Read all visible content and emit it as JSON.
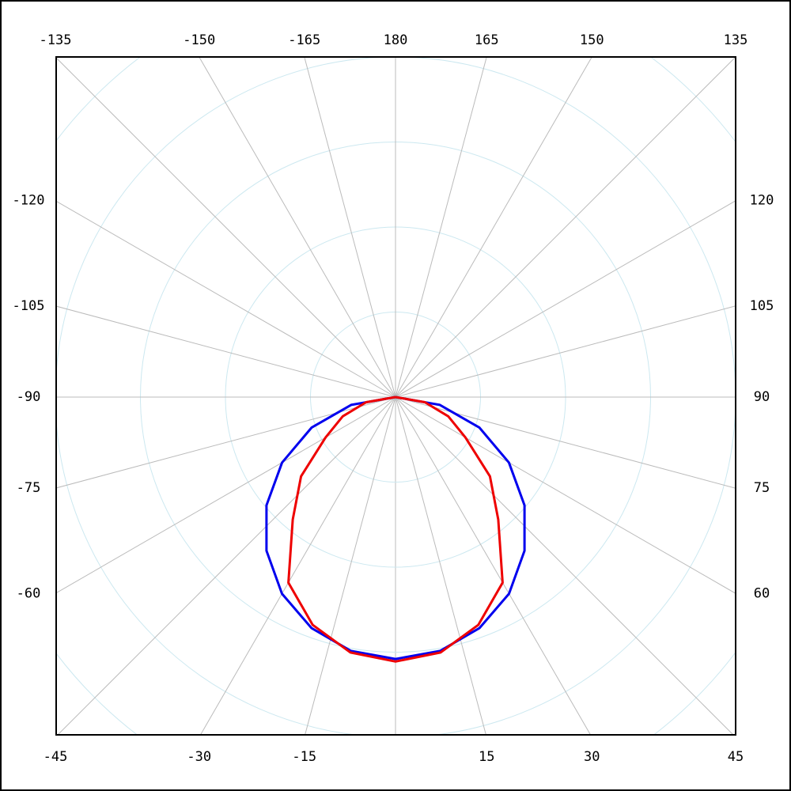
{
  "chart_data": {
    "type": "polar",
    "theta": [
      -90,
      -80,
      -70,
      -60,
      -50,
      -40,
      -30,
      -20,
      -10,
      0,
      10,
      20,
      30,
      40,
      50,
      60,
      70,
      80,
      90
    ],
    "series": [
      {
        "color": "#0000ee",
        "values": [
          0,
          0.53,
          1.05,
          1.54,
          1.98,
          2.36,
          2.67,
          2.89,
          3.03,
          3.08,
          3.03,
          2.89,
          2.67,
          2.36,
          1.98,
          1.54,
          1.05,
          0.53,
          0
        ]
      },
      {
        "color": "#ee0000",
        "values": [
          0,
          0.35,
          0.66,
          0.95,
          1.45,
          1.88,
          2.52,
          2.85,
          3.05,
          3.11,
          3.05,
          2.85,
          2.52,
          1.88,
          1.45,
          0.95,
          0.66,
          0.35,
          0
        ]
      }
    ],
    "rlim": [
      0,
      4
    ],
    "rticks": [
      1,
      2,
      3,
      4,
      5
    ],
    "angle_ticks": [
      -135,
      -150,
      -165,
      180,
      165,
      150,
      135,
      -120,
      -105,
      -90,
      -75,
      -60,
      120,
      105,
      90,
      75,
      60,
      -45,
      -30,
      -15,
      15,
      30,
      45
    ],
    "grid": true
  }
}
